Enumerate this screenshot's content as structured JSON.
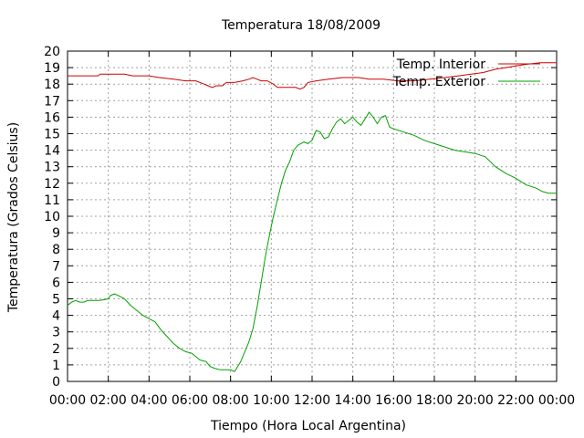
{
  "chart_data": {
    "type": "line",
    "title": "Temperatura 18/08/2009",
    "xlabel": "Tiempo (Hora Local Argentina)",
    "ylabel": "Temperatura (Grados Celsius)",
    "xlim": [
      0,
      24
    ],
    "ylim": [
      0,
      20
    ],
    "x_ticks": [
      {
        "value": 0,
        "label": "00:00"
      },
      {
        "value": 2,
        "label": "02:00"
      },
      {
        "value": 4,
        "label": "04:00"
      },
      {
        "value": 6,
        "label": "06:00"
      },
      {
        "value": 8,
        "label": "08:00"
      },
      {
        "value": 10,
        "label": "10:00"
      },
      {
        "value": 12,
        "label": "12:00"
      },
      {
        "value": 14,
        "label": "14:00"
      },
      {
        "value": 16,
        "label": "16:00"
      },
      {
        "value": 18,
        "label": "18:00"
      },
      {
        "value": 20,
        "label": "20:00"
      },
      {
        "value": 22,
        "label": "22:00"
      },
      {
        "value": 24,
        "label": "00:00"
      }
    ],
    "y_ticks": [
      0,
      1,
      2,
      3,
      4,
      5,
      6,
      7,
      8,
      9,
      10,
      11,
      12,
      13,
      14,
      15,
      16,
      17,
      18,
      19,
      20
    ],
    "grid": true,
    "legend_position": "top-right",
    "series": [
      {
        "name": "Temp. Interior",
        "color": "#cc0000",
        "points": [
          [
            0,
            18.5
          ],
          [
            1.5,
            18.5
          ],
          [
            1.6,
            18.6
          ],
          [
            2.8,
            18.6
          ],
          [
            3.2,
            18.5
          ],
          [
            4.0,
            18.5
          ],
          [
            4.5,
            18.4
          ],
          [
            5.2,
            18.3
          ],
          [
            5.8,
            18.2
          ],
          [
            6.3,
            18.2
          ],
          [
            6.7,
            18.0
          ],
          [
            6.9,
            17.9
          ],
          [
            7.1,
            17.8
          ],
          [
            7.3,
            17.9
          ],
          [
            7.6,
            17.9
          ],
          [
            7.8,
            18.1
          ],
          [
            8.2,
            18.1
          ],
          [
            8.6,
            18.2
          ],
          [
            8.9,
            18.3
          ],
          [
            9.1,
            18.4
          ],
          [
            9.3,
            18.3
          ],
          [
            9.5,
            18.2
          ],
          [
            9.8,
            18.2
          ],
          [
            10.1,
            18.0
          ],
          [
            10.3,
            17.8
          ],
          [
            10.8,
            17.8
          ],
          [
            11.2,
            17.8
          ],
          [
            11.4,
            17.7
          ],
          [
            11.6,
            17.8
          ],
          [
            11.8,
            18.1
          ],
          [
            12.2,
            18.2
          ],
          [
            12.8,
            18.3
          ],
          [
            13.5,
            18.4
          ],
          [
            14.3,
            18.4
          ],
          [
            14.8,
            18.3
          ],
          [
            15.5,
            18.3
          ],
          [
            16.2,
            18.2
          ],
          [
            17.0,
            18.2
          ],
          [
            17.8,
            18.3
          ],
          [
            18.5,
            18.4
          ],
          [
            19.2,
            18.5
          ],
          [
            19.8,
            18.6
          ],
          [
            20.4,
            18.7
          ],
          [
            21.0,
            18.9
          ],
          [
            21.5,
            19.0
          ],
          [
            22.0,
            19.1
          ],
          [
            22.5,
            19.2
          ],
          [
            23.2,
            19.3
          ],
          [
            24,
            19.3
          ]
        ]
      },
      {
        "name": "Temp. Exterior",
        "color": "#00a000",
        "points": [
          [
            0,
            4.6
          ],
          [
            0.2,
            4.8
          ],
          [
            0.4,
            4.9
          ],
          [
            0.6,
            4.8
          ],
          [
            0.8,
            4.8
          ],
          [
            1.0,
            4.9
          ],
          [
            1.6,
            4.9
          ],
          [
            2.0,
            5.0
          ],
          [
            2.1,
            5.2
          ],
          [
            2.3,
            5.3
          ],
          [
            2.5,
            5.2
          ],
          [
            2.8,
            5.0
          ],
          [
            3.1,
            4.6
          ],
          [
            3.4,
            4.3
          ],
          [
            3.7,
            4.0
          ],
          [
            4.0,
            3.8
          ],
          [
            4.3,
            3.6
          ],
          [
            4.6,
            3.1
          ],
          [
            4.9,
            2.7
          ],
          [
            5.2,
            2.3
          ],
          [
            5.5,
            2.0
          ],
          [
            5.8,
            1.8
          ],
          [
            6.1,
            1.7
          ],
          [
            6.3,
            1.5
          ],
          [
            6.5,
            1.3
          ],
          [
            6.8,
            1.2
          ],
          [
            7.0,
            0.9
          ],
          [
            7.2,
            0.8
          ],
          [
            7.5,
            0.7
          ],
          [
            7.8,
            0.7
          ],
          [
            8.0,
            0.7
          ],
          [
            8.2,
            0.6
          ],
          [
            8.3,
            0.8
          ],
          [
            8.5,
            1.2
          ],
          [
            8.7,
            1.8
          ],
          [
            8.9,
            2.4
          ],
          [
            9.1,
            3.2
          ],
          [
            9.3,
            4.5
          ],
          [
            9.5,
            6.0
          ],
          [
            9.7,
            7.5
          ],
          [
            9.9,
            8.8
          ],
          [
            10.1,
            10.0
          ],
          [
            10.3,
            11.0
          ],
          [
            10.5,
            12.0
          ],
          [
            10.7,
            12.8
          ],
          [
            10.9,
            13.3
          ],
          [
            11.1,
            14.0
          ],
          [
            11.3,
            14.3
          ],
          [
            11.6,
            14.5
          ],
          [
            11.8,
            14.4
          ],
          [
            12.0,
            14.6
          ],
          [
            12.2,
            15.2
          ],
          [
            12.4,
            15.1
          ],
          [
            12.6,
            14.7
          ],
          [
            12.8,
            14.8
          ],
          [
            13.0,
            15.3
          ],
          [
            13.2,
            15.7
          ],
          [
            13.4,
            15.9
          ],
          [
            13.6,
            15.6
          ],
          [
            13.8,
            15.8
          ],
          [
            14.0,
            16.0
          ],
          [
            14.2,
            15.7
          ],
          [
            14.4,
            15.5
          ],
          [
            14.6,
            15.9
          ],
          [
            14.8,
            16.3
          ],
          [
            15.0,
            16.0
          ],
          [
            15.2,
            15.6
          ],
          [
            15.4,
            16.0
          ],
          [
            15.6,
            16.1
          ],
          [
            15.8,
            15.4
          ],
          [
            16.0,
            15.3
          ],
          [
            16.5,
            15.1
          ],
          [
            17.0,
            14.9
          ],
          [
            17.5,
            14.6
          ],
          [
            18.0,
            14.4
          ],
          [
            18.5,
            14.2
          ],
          [
            19.0,
            14.0
          ],
          [
            19.5,
            13.9
          ],
          [
            20.0,
            13.8
          ],
          [
            20.5,
            13.6
          ],
          [
            21.0,
            13.0
          ],
          [
            21.5,
            12.6
          ],
          [
            22.0,
            12.3
          ],
          [
            22.5,
            11.9
          ],
          [
            23.0,
            11.7
          ],
          [
            23.3,
            11.5
          ],
          [
            23.6,
            11.4
          ],
          [
            24.0,
            11.4
          ]
        ]
      }
    ]
  }
}
